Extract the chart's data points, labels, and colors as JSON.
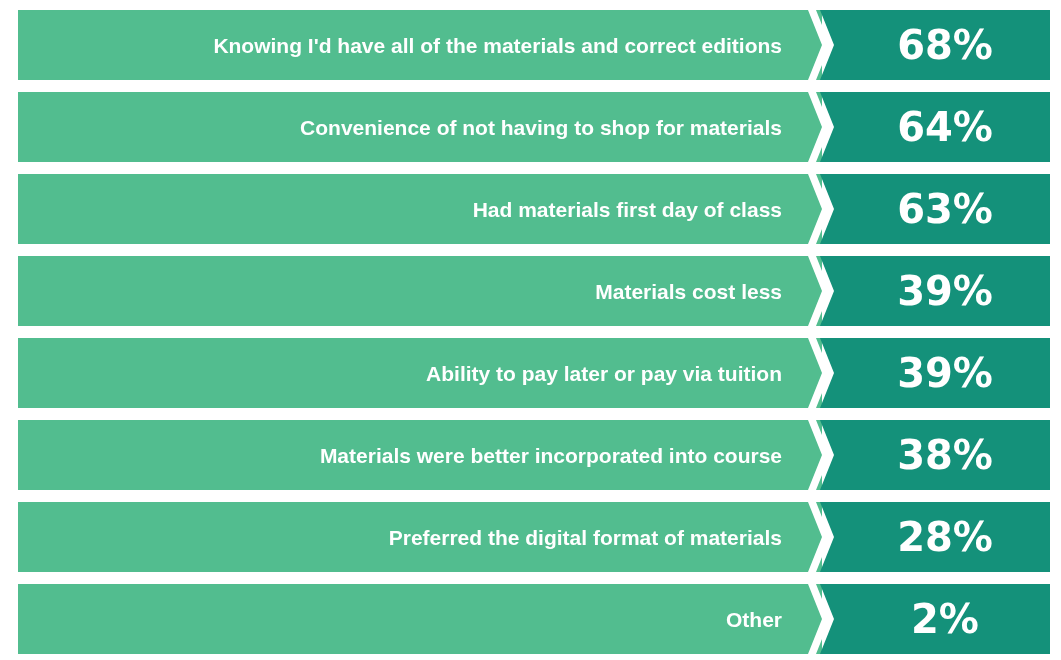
{
  "chart_data": {
    "type": "other",
    "color": "#14917a",
    "categories": [
      "Knowing I'd have all of the materials and correct editions",
      "Convenience of not having to shop for materials",
      "Had materials first day of class",
      "Materials cost less",
      "Ability to pay later or pay via tuition",
      "Materials were better incorporated into course",
      "Preferred the digital format of materials",
      "Other"
    ],
    "values": [
      68,
      64,
      63,
      39,
      39,
      38,
      28,
      2
    ],
    "value_labels": [
      "68%",
      "64%",
      "63%",
      "39%",
      "39%",
      "38%",
      "28%",
      "2%"
    ]
  }
}
